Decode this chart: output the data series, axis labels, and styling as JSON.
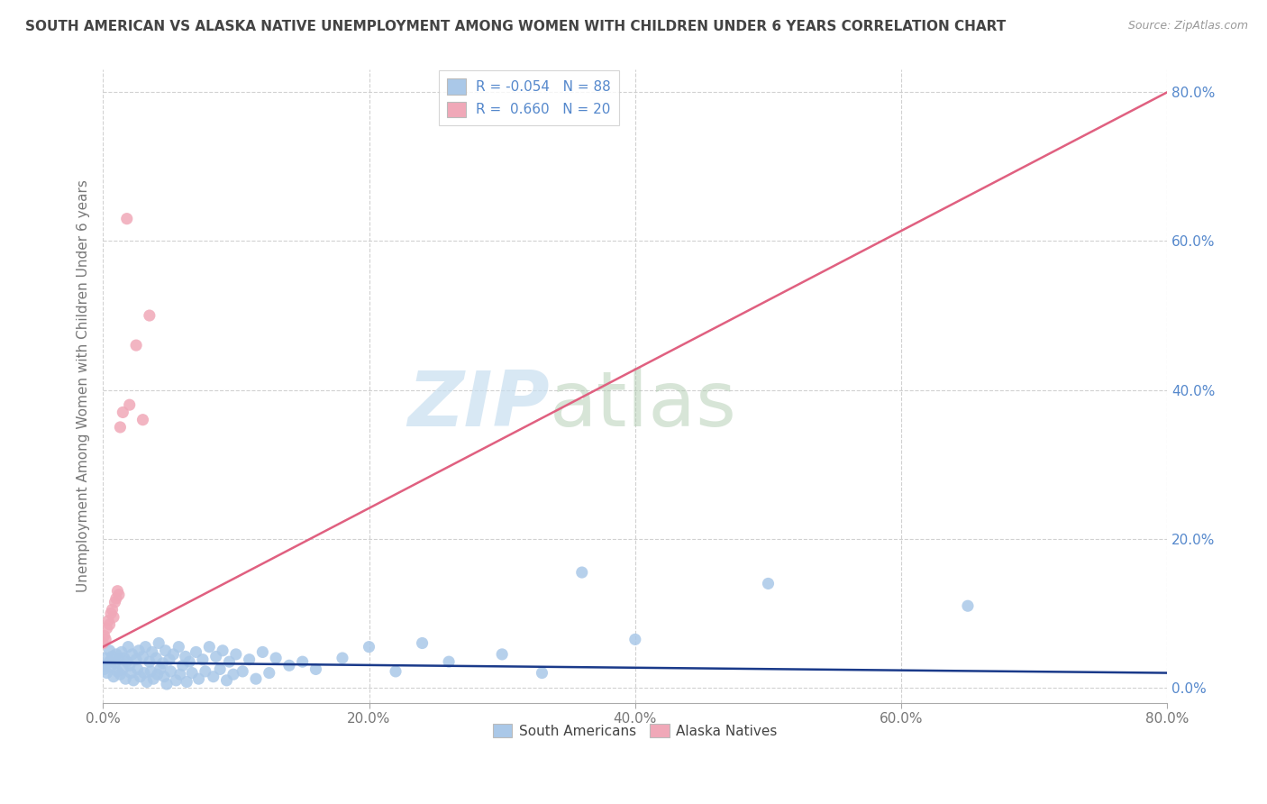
{
  "title": "SOUTH AMERICAN VS ALASKA NATIVE UNEMPLOYMENT AMONG WOMEN WITH CHILDREN UNDER 6 YEARS CORRELATION CHART",
  "source": "Source: ZipAtlas.com",
  "ylabel": "Unemployment Among Women with Children Under 6 years",
  "legend_labels": [
    "South Americans",
    "Alaska Natives"
  ],
  "r_south_american": -0.054,
  "n_south_american": 88,
  "r_alaska_native": 0.66,
  "n_alaska_native": 20,
  "color_south_american": "#aac8e8",
  "color_alaska_native": "#f0a8b8",
  "line_color_south_american": "#1a3a8a",
  "line_color_alaska_native": "#e06080",
  "watermark_zip": "ZIP",
  "watermark_atlas": "atlas",
  "background_color": "#ffffff",
  "xlim": [
    0.0,
    0.8
  ],
  "ylim": [
    -0.02,
    0.83
  ],
  "x_ticks": [
    0.0,
    0.2,
    0.4,
    0.6,
    0.8
  ],
  "y_ticks": [
    0.0,
    0.2,
    0.4,
    0.6,
    0.8
  ],
  "sa_trend_x0": 0.0,
  "sa_trend_y0": 0.034,
  "sa_trend_x1": 0.8,
  "sa_trend_y1": 0.02,
  "an_trend_x0": 0.0,
  "an_trend_y0": 0.055,
  "an_trend_x1": 0.8,
  "an_trend_y1": 0.8,
  "sa_x": [
    0.0,
    0.001,
    0.002,
    0.003,
    0.005,
    0.005,
    0.006,
    0.007,
    0.008,
    0.009,
    0.01,
    0.011,
    0.012,
    0.013,
    0.014,
    0.015,
    0.016,
    0.017,
    0.018,
    0.019,
    0.02,
    0.021,
    0.022,
    0.023,
    0.025,
    0.026,
    0.027,
    0.028,
    0.03,
    0.031,
    0.032,
    0.033,
    0.035,
    0.036,
    0.037,
    0.038,
    0.04,
    0.041,
    0.042,
    0.043,
    0.045,
    0.046,
    0.047,
    0.048,
    0.05,
    0.051,
    0.053,
    0.055,
    0.057,
    0.058,
    0.06,
    0.062,
    0.063,
    0.065,
    0.067,
    0.07,
    0.072,
    0.075,
    0.077,
    0.08,
    0.083,
    0.085,
    0.088,
    0.09,
    0.093,
    0.095,
    0.098,
    0.1,
    0.105,
    0.11,
    0.115,
    0.12,
    0.125,
    0.13,
    0.14,
    0.15,
    0.16,
    0.18,
    0.2,
    0.22,
    0.24,
    0.26,
    0.3,
    0.33,
    0.36,
    0.4,
    0.5,
    0.65
  ],
  "sa_y": [
    0.03,
    0.025,
    0.04,
    0.02,
    0.035,
    0.05,
    0.028,
    0.042,
    0.015,
    0.033,
    0.045,
    0.022,
    0.038,
    0.018,
    0.048,
    0.025,
    0.04,
    0.012,
    0.035,
    0.055,
    0.03,
    0.02,
    0.045,
    0.01,
    0.038,
    0.025,
    0.05,
    0.015,
    0.042,
    0.02,
    0.055,
    0.008,
    0.035,
    0.022,
    0.048,
    0.012,
    0.04,
    0.018,
    0.06,
    0.025,
    0.033,
    0.015,
    0.05,
    0.005,
    0.038,
    0.022,
    0.045,
    0.01,
    0.055,
    0.018,
    0.03,
    0.042,
    0.008,
    0.035,
    0.02,
    0.048,
    0.012,
    0.038,
    0.022,
    0.055,
    0.015,
    0.042,
    0.025,
    0.05,
    0.01,
    0.035,
    0.018,
    0.045,
    0.022,
    0.038,
    0.012,
    0.048,
    0.02,
    0.04,
    0.03,
    0.035,
    0.025,
    0.04,
    0.055,
    0.022,
    0.06,
    0.035,
    0.045,
    0.02,
    0.155,
    0.065,
    0.14,
    0.11
  ],
  "an_x": [
    0.0,
    0.001,
    0.002,
    0.003,
    0.004,
    0.005,
    0.006,
    0.007,
    0.008,
    0.009,
    0.01,
    0.011,
    0.012,
    0.013,
    0.015,
    0.018,
    0.02,
    0.025,
    0.03,
    0.035
  ],
  "an_y": [
    0.06,
    0.07,
    0.065,
    0.08,
    0.09,
    0.085,
    0.1,
    0.105,
    0.095,
    0.115,
    0.12,
    0.13,
    0.125,
    0.35,
    0.37,
    0.63,
    0.38,
    0.46,
    0.36,
    0.5
  ]
}
